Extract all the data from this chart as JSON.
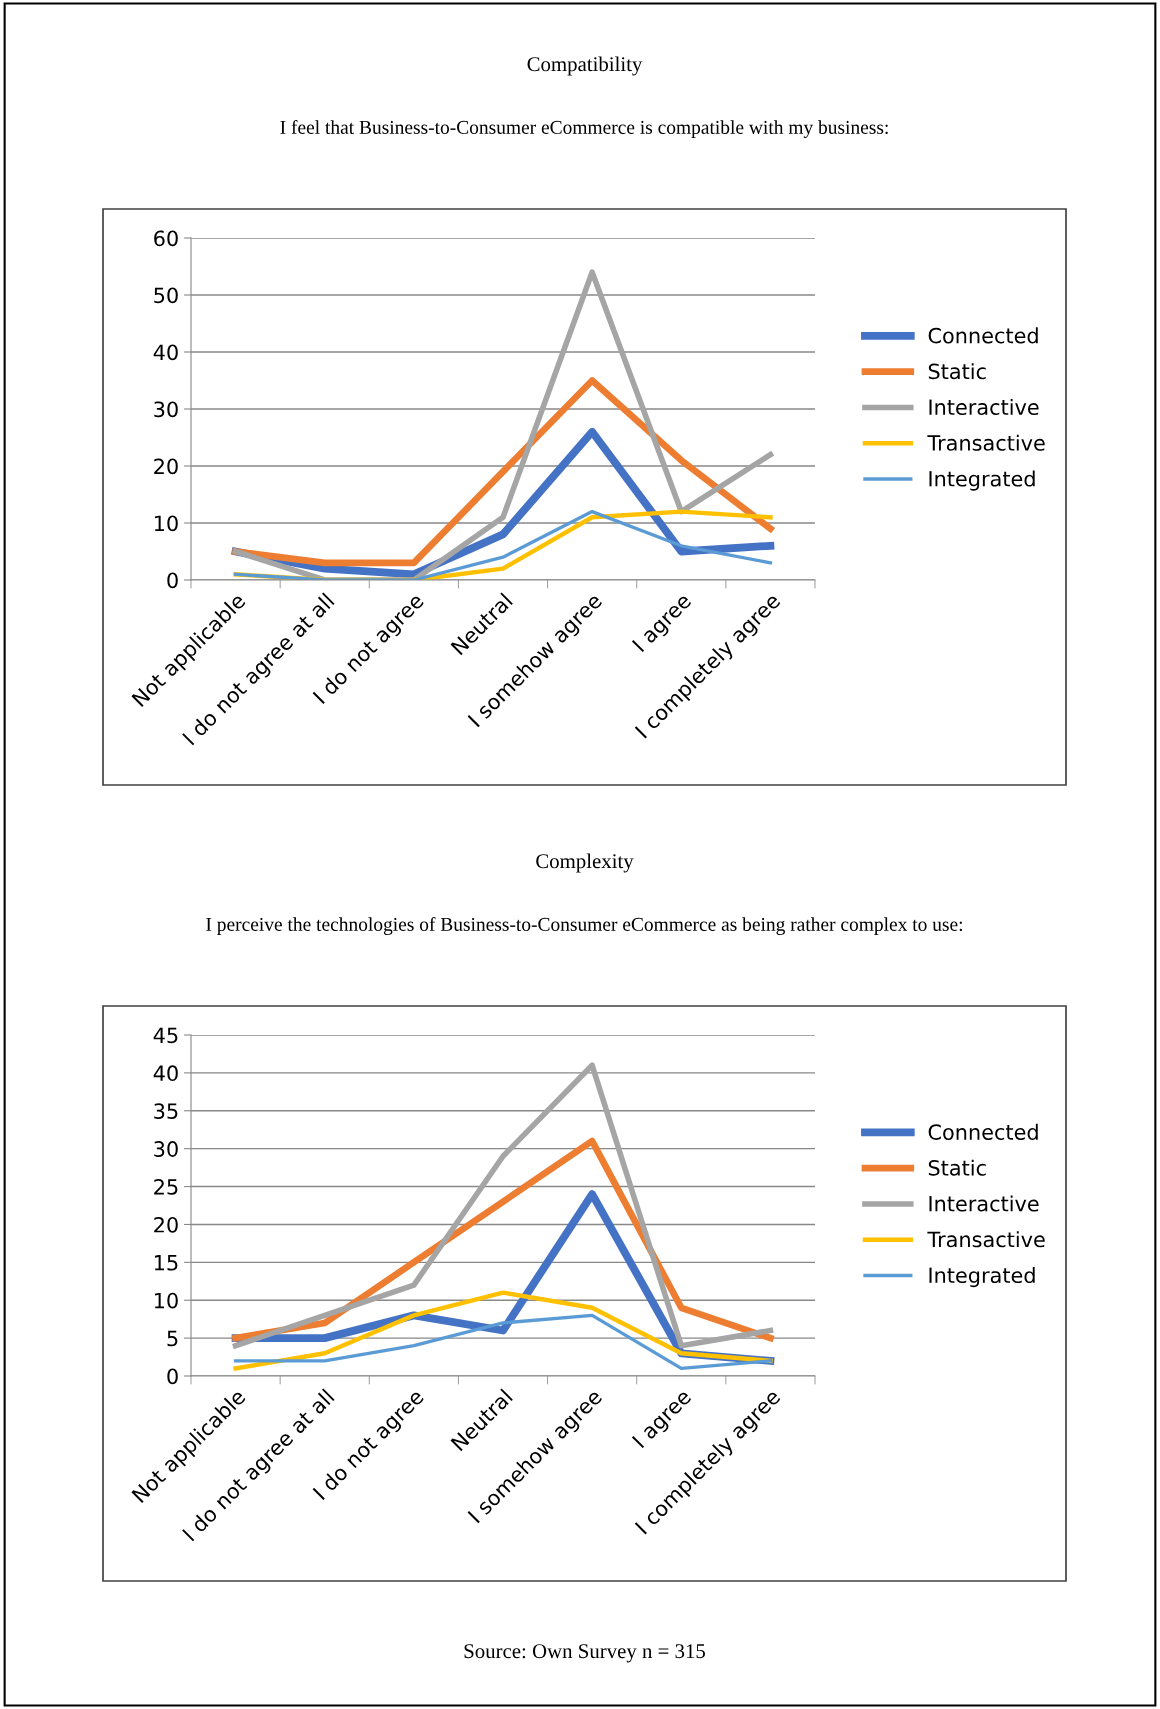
{
  "chart_data": [
    {
      "type": "line",
      "title": "Compatibility",
      "subtitle": "I feel that Business-to-Consumer eCommerce is compatible with my business:",
      "categories": [
        "Not applicable",
        "I do not agree at all",
        "I do not agree",
        "Neutral",
        "I somehow agree",
        "I agree",
        "I completely agree"
      ],
      "series": [
        {
          "name": "Connected",
          "color": "#4472c4",
          "values": [
            5,
            2,
            1,
            8,
            26,
            5,
            6
          ]
        },
        {
          "name": "Static",
          "color": "#ed7d31",
          "values": [
            5,
            3,
            3,
            19,
            35,
            21,
            9
          ]
        },
        {
          "name": "Interactive",
          "color": "#a5a5a5",
          "values": [
            5,
            0,
            0,
            11,
            54,
            12,
            22
          ]
        },
        {
          "name": "Transactive",
          "color": "#ffc000",
          "values": [
            1,
            0,
            0,
            2,
            11,
            12,
            11
          ]
        },
        {
          "name": "Integrated",
          "color": "#5b9bd5",
          "values": [
            1,
            0,
            0,
            4,
            12,
            6,
            3
          ]
        }
      ],
      "ylim": [
        0,
        60
      ],
      "yticks": [
        0,
        10,
        20,
        30,
        40,
        50,
        60
      ],
      "grid": "y",
      "legend": "right",
      "marker": "none",
      "line_style": "solid"
    },
    {
      "type": "line",
      "title": "Complexity",
      "subtitle": "I perceive the technologies of Business-to-Consumer eCommerce as being rather complex to use:",
      "categories": [
        "Not applicable",
        "I do not agree at all",
        "I do not agree",
        "Neutral",
        "I somehow agree",
        "I agree",
        "I completely agree"
      ],
      "series": [
        {
          "name": "Connected",
          "color": "#4472c4",
          "values": [
            5,
            5,
            8,
            6,
            24,
            3,
            2
          ]
        },
        {
          "name": "Static",
          "color": "#ed7d31",
          "values": [
            5,
            7,
            15,
            23,
            31,
            9,
            5
          ]
        },
        {
          "name": "Interactive",
          "color": "#a5a5a5",
          "values": [
            4,
            8,
            12,
            29,
            41,
            4,
            6
          ]
        },
        {
          "name": "Transactive",
          "color": "#ffc000",
          "values": [
            1,
            3,
            8,
            11,
            9,
            3,
            2
          ]
        },
        {
          "name": "Integrated",
          "color": "#5b9bd5",
          "values": [
            2,
            2,
            4,
            7,
            8,
            1,
            2
          ]
        }
      ],
      "ylim": [
        0,
        45
      ],
      "yticks": [
        0,
        5,
        10,
        15,
        20,
        25,
        30,
        35,
        40,
        45
      ],
      "grid": "y",
      "legend": "right",
      "marker": "none",
      "line_style": "solid",
      "annotations": [
        "Source: Own Survey n = 315"
      ]
    }
  ]
}
